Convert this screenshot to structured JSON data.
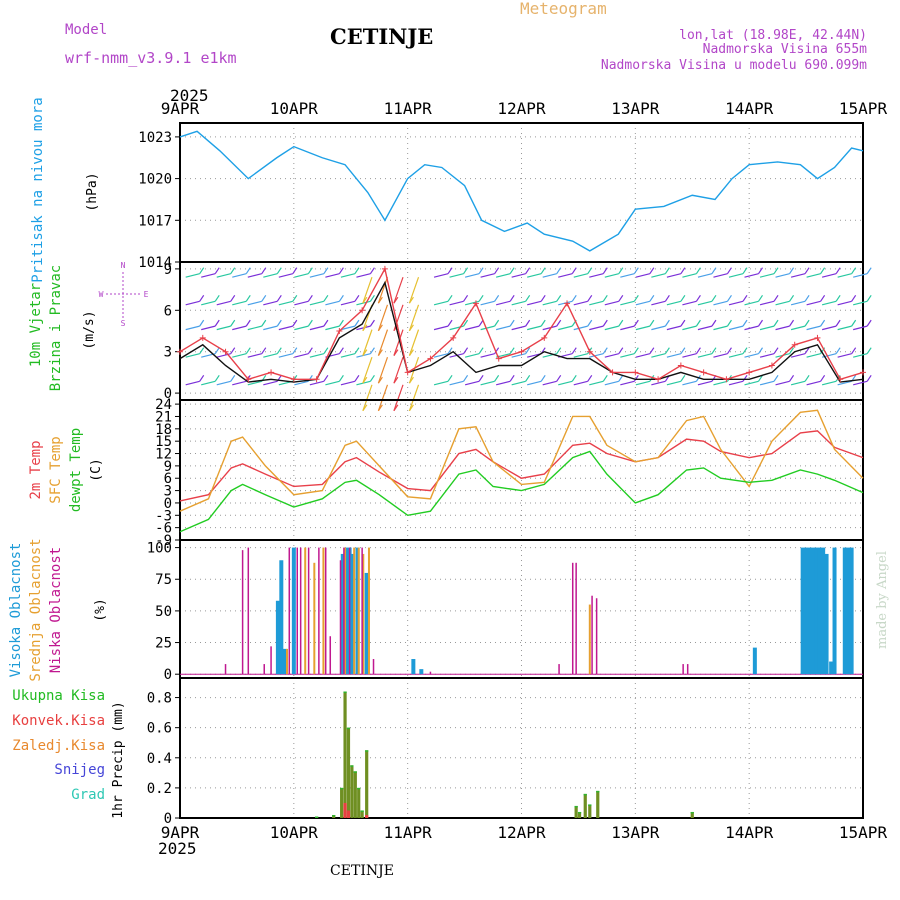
{
  "header": {
    "model_label": "Model",
    "model_name": "wrf-nmm_v3.9.1  e1km",
    "title": "CETINJE",
    "meteogram_label": "Meteogram",
    "coords": "lon,lat (18.98E, 42.44N)",
    "elevation": "Nadmorska Visina 655m",
    "model_elevation": "Nadmorska Visina u modelu 690.099m",
    "year": "2025",
    "credit": "made by Angel",
    "footer": "CETINJE"
  },
  "time_axis": {
    "ticks": [
      "9APR",
      "10APR",
      "11APR",
      "12APR",
      "13APR",
      "14APR",
      "15APR"
    ],
    "year": "2025"
  },
  "colors": {
    "pressure": "#1ea0e6",
    "temp2m": "#e8404a",
    "sfc": "#e6a030",
    "dewpt": "#22cc22",
    "high_cloud": "#1e9bd7",
    "mid_cloud": "#e6a030",
    "low_cloud": "#c01890",
    "total_precip": "#2fb52f",
    "conv_precip": "#e84040",
    "grid_precip": "#e8892e",
    "snow": "#4646d8",
    "graupel": "#2ec8b4",
    "wind_speed": "#111111",
    "gust": "#e8404a"
  },
  "chart_data": [
    {
      "type": "line",
      "panel": "pressure",
      "ylabel_lines": [
        "Pritisak na nivou mora"
      ],
      "unit": "(hPa)",
      "yticks": [
        1014,
        1017,
        1020,
        1023
      ],
      "ylim": [
        1014,
        1024
      ],
      "grid": true,
      "x_days": [
        0,
        0.15,
        0.35,
        0.6,
        0.85,
        1.0,
        1.25,
        1.45,
        1.65,
        1.8,
        2.0,
        2.15,
        2.3,
        2.5,
        2.65,
        2.85,
        3.05,
        3.2,
        3.45,
        3.6,
        3.85,
        4.0,
        4.25,
        4.5,
        4.7,
        4.85,
        5.0,
        5.25,
        5.45,
        5.6,
        5.75,
        5.9,
        6.0
      ],
      "series": [
        {
          "values": [
            1023.0,
            1023.4,
            1022.0,
            1020.0,
            1021.5,
            1022.3,
            1021.5,
            1021.0,
            1019.0,
            1017.0,
            1020.0,
            1021.0,
            1020.8,
            1019.5,
            1017.0,
            1016.2,
            1016.8,
            1016.0,
            1015.5,
            1014.8,
            1016.0,
            1017.8,
            1018.0,
            1018.8,
            1018.5,
            1020.0,
            1021.0,
            1021.2,
            1021.0,
            1020.0,
            1020.8,
            1022.2,
            1022.0
          ]
        }
      ]
    },
    {
      "type": "line",
      "panel": "wind",
      "ylabel_lines": [
        "10m Vjetar",
        "Brzina i Pravac"
      ],
      "unit": "(m/s)",
      "direction_key": [
        "N",
        "S",
        "W",
        "E"
      ],
      "yticks": [
        0,
        3,
        6,
        9
      ],
      "ylim": [
        -0.5,
        9.5
      ],
      "grid": true,
      "note": "speed and gust approximate; barbs drawn decoratively",
      "x_days": [
        0,
        0.2,
        0.4,
        0.6,
        0.8,
        1.0,
        1.2,
        1.4,
        1.6,
        1.8,
        2.0,
        2.2,
        2.4,
        2.6,
        2.8,
        3.0,
        3.2,
        3.4,
        3.6,
        3.8,
        4.0,
        4.2,
        4.4,
        4.6,
        4.8,
        5.0,
        5.2,
        5.4,
        5.6,
        5.8,
        6.0
      ],
      "series": [
        {
          "name": "speed",
          "values": [
            2.5,
            3.5,
            2.0,
            0.8,
            1.0,
            0.8,
            1.0,
            4.0,
            5.0,
            8.0,
            1.5,
            2.0,
            3.0,
            1.5,
            2.0,
            2.0,
            3.0,
            2.5,
            2.5,
            1.5,
            1.0,
            1.0,
            1.5,
            1.0,
            1.0,
            1.0,
            1.5,
            3.0,
            3.5,
            0.8,
            1.0
          ]
        },
        {
          "name": "gust",
          "values": [
            3.0,
            4.0,
            3.0,
            1.0,
            1.5,
            1.0,
            1.0,
            4.5,
            6.0,
            9.0,
            1.5,
            2.5,
            4.0,
            6.5,
            2.5,
            3.0,
            4.0,
            6.5,
            3.0,
            1.5,
            1.5,
            1.0,
            2.0,
            1.5,
            1.0,
            1.5,
            2.0,
            3.5,
            4.0,
            1.0,
            1.5
          ]
        }
      ]
    },
    {
      "type": "line",
      "panel": "temperature",
      "ylabel_lines": [
        "2m Temp",
        "SFC Temp",
        "dewpt Temp"
      ],
      "unit": "(C)",
      "yticks": [
        -9,
        -6,
        -3,
        0,
        3,
        6,
        9,
        12,
        15,
        18,
        21,
        24
      ],
      "ylim": [
        -9,
        25
      ],
      "grid": true,
      "x_days": [
        0,
        0.25,
        0.45,
        0.55,
        0.75,
        1.0,
        1.25,
        1.45,
        1.55,
        1.75,
        2.0,
        2.2,
        2.45,
        2.6,
        2.75,
        3.0,
        3.2,
        3.45,
        3.6,
        3.75,
        4.0,
        4.2,
        4.45,
        4.6,
        4.75,
        5.0,
        5.2,
        5.45,
        5.6,
        5.75,
        6.0
      ],
      "series": [
        {
          "name": "2m Temp",
          "values": [
            0.5,
            2.0,
            8.5,
            9.5,
            7.0,
            4.0,
            4.5,
            10.0,
            11.0,
            7.5,
            3.5,
            3.0,
            12.0,
            13.0,
            10.0,
            6.0,
            7.0,
            14.0,
            14.5,
            12.0,
            10.0,
            11.0,
            15.5,
            15.0,
            12.5,
            11.0,
            12.0,
            17.0,
            17.5,
            13.5,
            11.0
          ]
        },
        {
          "name": "SFC Temp",
          "values": [
            -2.0,
            1.0,
            15.0,
            16.0,
            9.0,
            2.0,
            3.0,
            14.0,
            15.0,
            9.0,
            1.5,
            1.0,
            18.0,
            18.5,
            10.0,
            4.5,
            5.0,
            21.0,
            21.0,
            14.0,
            10.0,
            11.0,
            20.0,
            21.0,
            13.0,
            4.0,
            15.0,
            22.0,
            22.5,
            13.0,
            6.0
          ]
        },
        {
          "name": "dewpt Temp",
          "values": [
            -7.0,
            -4.0,
            3.0,
            4.5,
            2.0,
            -1.0,
            1.0,
            5.0,
            5.5,
            2.0,
            -3.0,
            -2.0,
            7.0,
            8.0,
            4.0,
            3.0,
            4.5,
            11.0,
            12.5,
            7.0,
            0.0,
            2.0,
            8.0,
            8.5,
            6.0,
            5.0,
            5.5,
            8.0,
            7.0,
            5.5,
            2.5
          ]
        }
      ]
    },
    {
      "type": "bar",
      "panel": "cloud",
      "ylabel_lines": [
        "Visoka Oblacnost",
        "Srednja Oblacnost",
        "Niska Oblacnost"
      ],
      "unit": "(%)",
      "yticks": [
        0,
        25,
        50,
        75,
        100
      ],
      "ylim": [
        -3,
        106
      ],
      "grid": true,
      "series": [
        {
          "name": "Visoka Oblacnost",
          "x_days": [
            0.86,
            0.89,
            0.92,
            1.0,
            1.43,
            1.46,
            1.49,
            1.52,
            1.56,
            1.64,
            2.05,
            2.12,
            5.05,
            5.47,
            5.5,
            5.53,
            5.56,
            5.59,
            5.62,
            5.65,
            5.68,
            5.72,
            5.75,
            5.84,
            5.87,
            5.9
          ],
          "values": [
            58,
            90,
            20,
            100,
            95,
            100,
            100,
            95,
            100,
            80,
            12,
            4,
            21,
            100,
            100,
            100,
            100,
            100,
            100,
            100,
            95,
            10,
            100,
            100,
            100,
            100
          ]
        },
        {
          "name": "Srednja Oblacnost",
          "x_days": [
            0.94,
            1.1,
            1.18,
            1.26,
            1.45,
            1.53,
            1.57,
            1.61,
            1.66,
            3.6
          ],
          "values": [
            20,
            100,
            88,
            100,
            100,
            100,
            100,
            95,
            100,
            55
          ]
        },
        {
          "name": "Niska Oblacnost",
          "x_days": [
            0.4,
            0.55,
            0.6,
            0.74,
            0.8,
            0.96,
            1.03,
            1.06,
            1.13,
            1.22,
            1.28,
            1.32,
            1.41,
            1.44,
            1.49,
            1.6,
            1.7,
            2.2,
            3.33,
            3.45,
            3.48,
            3.62,
            3.66,
            4.42,
            4.46
          ],
          "values": [
            8,
            98,
            100,
            8,
            22,
            100,
            100,
            100,
            100,
            100,
            100,
            30,
            90,
            100,
            100,
            100,
            12,
            2,
            8,
            88,
            88,
            62,
            60,
            8,
            8
          ]
        }
      ]
    },
    {
      "type": "bar",
      "panel": "precip",
      "ylabel_lines": [
        "1hr Precip (mm)"
      ],
      "legend": [
        "Ukupna Kisa",
        "Konvek.Kisa",
        "Zaledj.Kisa",
        "Snijeg",
        "Grad"
      ],
      "yticks": [
        0,
        0.2,
        0.4,
        0.6,
        0.8
      ],
      "ylim": [
        0,
        0.93
      ],
      "grid": true,
      "series": [
        {
          "name": "Ukupna Kisa",
          "x_days": [
            1.2,
            1.35,
            1.42,
            1.45,
            1.48,
            1.51,
            1.54,
            1.57,
            1.6,
            1.64,
            3.48,
            3.51,
            3.56,
            3.6,
            3.67,
            4.5
          ],
          "values": [
            0.01,
            0.02,
            0.2,
            0.84,
            0.6,
            0.35,
            0.31,
            0.2,
            0.05,
            0.45,
            0.08,
            0.04,
            0.16,
            0.09,
            0.18,
            0.04
          ]
        },
        {
          "name": "Konvek.Kisa",
          "x_days": [
            1.45,
            1.48,
            1.64
          ],
          "values": [
            0.1,
            0.05,
            0.02
          ]
        }
      ]
    }
  ]
}
